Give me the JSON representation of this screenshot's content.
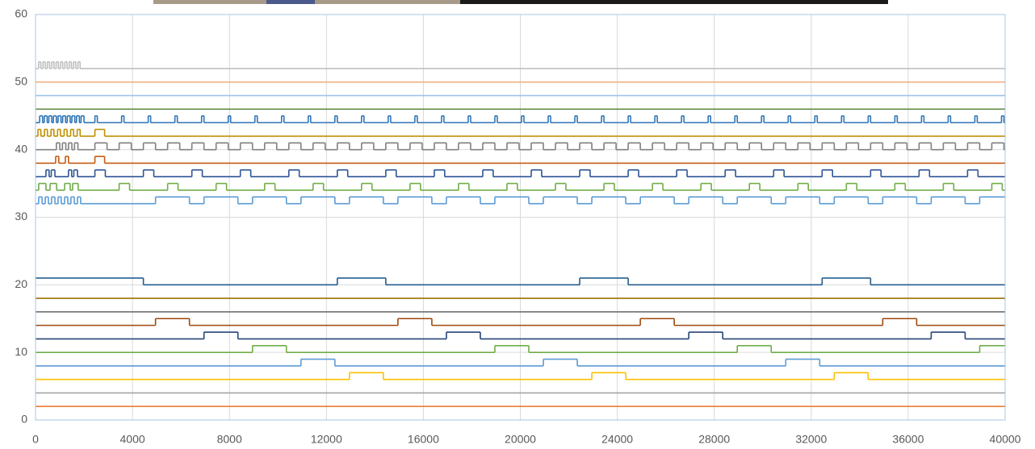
{
  "chart_data": {
    "type": "line",
    "step": "post",
    "grid": true,
    "xlim": [
      0,
      40000
    ],
    "xticks": [
      0,
      4000,
      8000,
      12000,
      16000,
      20000,
      24000,
      28000,
      32000,
      36000,
      40000
    ],
    "ylim": [
      0,
      60
    ],
    "yticks": [
      0,
      10,
      20,
      30,
      40,
      50,
      60
    ],
    "series": [
      {
        "color": "#ed7d31",
        "x": [
          0
        ],
        "values": [
          2
        ]
      },
      {
        "color": "#a5a5a5",
        "x": [
          0
        ],
        "values": [
          4
        ]
      },
      {
        "color": "#ffc000",
        "x": [
          0,
          12950,
          14350,
          22950,
          24350,
          32950,
          34350
        ],
        "values": [
          6,
          7,
          6,
          7,
          6,
          7,
          6
        ]
      },
      {
        "color": "#5b9bd5",
        "x": [
          0,
          10950,
          12350,
          20950,
          22350,
          30950,
          32350
        ],
        "values": [
          8,
          9,
          8,
          9,
          8,
          9,
          8
        ]
      },
      {
        "color": "#70ad47",
        "x": [
          0,
          8950,
          10350,
          18950,
          20350,
          28950,
          30350,
          38950
        ],
        "values": [
          10,
          11,
          10,
          11,
          10,
          11,
          10,
          11
        ]
      },
      {
        "color": "#264478",
        "x": [
          0,
          6950,
          8350,
          16950,
          18350,
          26950,
          28350,
          36950,
          38350
        ],
        "values": [
          12,
          13,
          12,
          13,
          12,
          13,
          12,
          13,
          12
        ]
      },
      {
        "color": "#9e480e",
        "x": [
          0,
          4950,
          6350,
          14950,
          16350,
          24950,
          26350,
          34950,
          36350
        ],
        "values": [
          14,
          15,
          14,
          15,
          14,
          15,
          14,
          15,
          14
        ]
      },
      {
        "color": "#636363",
        "x": [
          0
        ],
        "values": [
          16
        ]
      },
      {
        "color": "#997300",
        "x": [
          0
        ],
        "values": [
          18
        ]
      },
      {
        "color": "#255e91",
        "x": [
          0,
          4450,
          12450,
          14450,
          22450,
          24450,
          32450,
          34450
        ],
        "values": [
          21,
          20,
          21,
          20,
          21,
          20,
          21,
          20
        ]
      },
      {
        "color": "#5b9bd5",
        "x": [
          0,
          130,
          270,
          400,
          530,
          660,
          800,
          930,
          1060,
          1200,
          1330,
          1460,
          1600,
          1730,
          1860,
          4950,
          6350,
          6950,
          8350,
          8950,
          10350,
          10950,
          12350,
          12950,
          14350,
          14950,
          16350,
          16950,
          18350,
          18950,
          20350,
          20950,
          22350,
          22950,
          24350,
          24950,
          26350,
          26950,
          28350,
          28950,
          30350,
          30950,
          32350,
          32950,
          34350,
          34950,
          36350,
          36950,
          38350,
          38950
        ],
        "values": [
          32,
          33,
          32,
          33,
          32,
          33,
          32,
          33,
          32,
          33,
          32,
          33,
          32,
          33,
          32,
          33,
          32,
          33,
          32,
          33,
          32,
          33,
          32,
          33,
          32,
          33,
          32,
          33,
          32,
          33,
          32,
          33,
          32,
          33,
          32,
          33,
          32,
          33,
          32,
          33,
          32,
          33,
          32,
          33,
          32,
          33,
          32,
          33,
          32,
          33
        ]
      },
      {
        "color": "#70ad47",
        "x": [
          0,
          130,
          430,
          600,
          870,
          1200,
          1430,
          1530,
          1760,
          3450,
          3880,
          5450,
          5880,
          7450,
          7880,
          9450,
          9880,
          11450,
          11880,
          13450,
          13880,
          15450,
          15880,
          17450,
          17880,
          19450,
          19880,
          21450,
          21880,
          23450,
          23880,
          25450,
          25880,
          27450,
          27880,
          29450,
          29880,
          31450,
          31880,
          33450,
          33880,
          35450,
          35880,
          37450,
          37880,
          39450,
          39880
        ],
        "values": [
          34,
          35,
          34,
          35,
          34,
          35,
          34,
          35,
          34,
          35,
          34,
          35,
          34,
          35,
          34,
          35,
          34,
          35,
          34,
          35,
          34,
          35,
          34,
          35,
          34,
          35,
          34,
          35,
          34,
          35,
          34,
          35,
          34,
          35,
          34,
          35,
          34,
          35,
          34,
          35,
          34,
          35,
          34,
          35,
          34,
          35,
          34
        ]
      },
      {
        "color": "#2f5597",
        "x": [
          0,
          430,
          560,
          650,
          800,
          1360,
          1490,
          1580,
          1730,
          2450,
          2880,
          4450,
          4880,
          6450,
          6880,
          8450,
          8880,
          10450,
          10880,
          12450,
          12880,
          14450,
          14880,
          16450,
          16880,
          18450,
          18880,
          20450,
          20880,
          22450,
          22880,
          24450,
          24880,
          26450,
          26880,
          28450,
          28880,
          30450,
          30880,
          32450,
          32880,
          34450,
          34880,
          36450,
          36880,
          38450,
          38880
        ],
        "values": [
          36,
          37,
          36,
          37,
          36,
          37,
          36,
          37,
          36,
          37,
          36,
          37,
          36,
          37,
          36,
          37,
          36,
          37,
          36,
          37,
          36,
          37,
          36,
          37,
          36,
          37,
          36,
          37,
          36,
          37,
          36,
          37,
          36,
          37,
          36,
          37,
          36,
          37,
          36,
          37,
          36,
          37,
          36,
          37,
          36,
          37,
          36
        ]
      },
      {
        "color": "#c55a11",
        "x": [
          0,
          830,
          960,
          1230,
          1360,
          2450,
          2850
        ],
        "values": [
          38,
          39,
          38,
          39,
          38,
          39,
          38
        ]
      },
      {
        "color": "#7f7f7f",
        "x": [
          0,
          860,
          1000,
          1110,
          1250,
          1360,
          1500,
          1610,
          1750,
          2450,
          2950,
          3450,
          3950,
          4450,
          4950,
          5450,
          5950,
          6450,
          6950,
          7450,
          7950,
          8450,
          8950,
          9450,
          9950,
          10450,
          10950,
          11450,
          11950,
          12450,
          12950,
          13450,
          13950,
          14450,
          14950,
          15450,
          15950,
          16450,
          16950,
          17450,
          17950,
          18450,
          18950,
          19450,
          19950,
          20450,
          20950,
          21450,
          21950,
          22450,
          22950,
          23450,
          23950,
          24450,
          24950,
          25450,
          25950,
          26450,
          26950,
          27450,
          27950,
          28450,
          28950,
          29450,
          29950,
          30450,
          30950,
          31450,
          31950,
          32450,
          32950,
          33450,
          33950,
          34450,
          34950,
          35450,
          35950,
          36450,
          36950,
          37450,
          37950,
          38450,
          38950,
          39450,
          39950
        ],
        "values": [
          40,
          41,
          40,
          41,
          40,
          41,
          40,
          41,
          40,
          41,
          40,
          41,
          40,
          41,
          40,
          41,
          40,
          41,
          40,
          41,
          40,
          41,
          40,
          41,
          40,
          41,
          40,
          41,
          40,
          41,
          40,
          41,
          40,
          41,
          40,
          41,
          40,
          41,
          40,
          41,
          40,
          41,
          40,
          41,
          40,
          41,
          40,
          41,
          40,
          41,
          40,
          41,
          40,
          41,
          40,
          41,
          40,
          41,
          40,
          41,
          40,
          41,
          40,
          41,
          40,
          41,
          40,
          41,
          40,
          41,
          40,
          41,
          40,
          41,
          40,
          41,
          40,
          41,
          40,
          41,
          40,
          41,
          40,
          41,
          40
        ]
      },
      {
        "color": "#bf9000",
        "x": [
          0,
          100,
          220,
          370,
          490,
          640,
          760,
          910,
          1030,
          1180,
          1300,
          1450,
          1570,
          1720,
          1840,
          2450,
          2850
        ],
        "values": [
          42,
          43,
          42,
          43,
          42,
          43,
          42,
          43,
          42,
          43,
          42,
          43,
          42,
          43,
          42,
          43,
          42
        ]
      },
      {
        "color": "#2e75b6",
        "x": [
          0,
          170,
          290,
          360,
          480,
          550,
          670,
          740,
          860,
          930,
          1050,
          1120,
          1240,
          1310,
          1430,
          1500,
          1620,
          1690,
          1810,
          1880,
          2000,
          2450,
          2550,
          3550,
          3650,
          4650,
          4750,
          5750,
          5850,
          6850,
          6950,
          7950,
          8050,
          9050,
          9150,
          10150,
          10250,
          11250,
          11350,
          12350,
          12450,
          13450,
          13550,
          14550,
          14650,
          15650,
          15750,
          16750,
          16850,
          17850,
          17950,
          18950,
          19050,
          20050,
          20150,
          21150,
          21250,
          22250,
          22350,
          23350,
          23450,
          24450,
          24550,
          25550,
          25650,
          26650,
          26750,
          27750,
          27850,
          28850,
          28950,
          29950,
          30050,
          31050,
          31150,
          32150,
          32250,
          33250,
          33350,
          34350,
          34450,
          35450,
          35550,
          36550,
          36650,
          37650,
          37750,
          38750,
          38850,
          39850,
          39950
        ],
        "values": [
          44,
          45,
          44,
          45,
          44,
          45,
          44,
          45,
          44,
          45,
          44,
          45,
          44,
          45,
          44,
          45,
          44,
          45,
          44,
          45,
          44,
          45,
          44,
          45,
          44,
          45,
          44,
          45,
          44,
          45,
          44,
          45,
          44,
          45,
          44,
          45,
          44,
          45,
          44,
          45,
          44,
          45,
          44,
          45,
          44,
          45,
          44,
          45,
          44,
          45,
          44,
          45,
          44,
          45,
          44,
          45,
          44,
          45,
          44,
          45,
          44,
          45,
          44,
          45,
          44,
          45,
          44,
          45,
          44,
          45,
          44,
          45,
          44,
          45,
          44,
          45,
          44,
          45,
          44,
          45,
          44,
          45,
          44,
          45,
          44,
          45,
          44,
          45,
          44,
          45,
          44
        ]
      },
      {
        "color": "#548235",
        "x": [
          0
        ],
        "values": [
          46
        ]
      },
      {
        "color": "#9dc3e6",
        "x": [
          0
        ],
        "values": [
          48
        ]
      },
      {
        "color": "#f4b183",
        "x": [
          0
        ],
        "values": [
          50
        ]
      },
      {
        "color": "#bfbfbf",
        "x": [
          0,
          130,
          220,
          310,
          400,
          490,
          580,
          670,
          760,
          850,
          940,
          1030,
          1120,
          1210,
          1300,
          1390,
          1480,
          1570,
          1660,
          1750,
          1840
        ],
        "values": [
          52,
          53,
          52,
          53,
          52,
          53,
          52,
          53,
          52,
          53,
          52,
          53,
          52,
          53,
          52,
          53,
          52,
          53,
          52,
          53,
          52
        ]
      }
    ]
  }
}
